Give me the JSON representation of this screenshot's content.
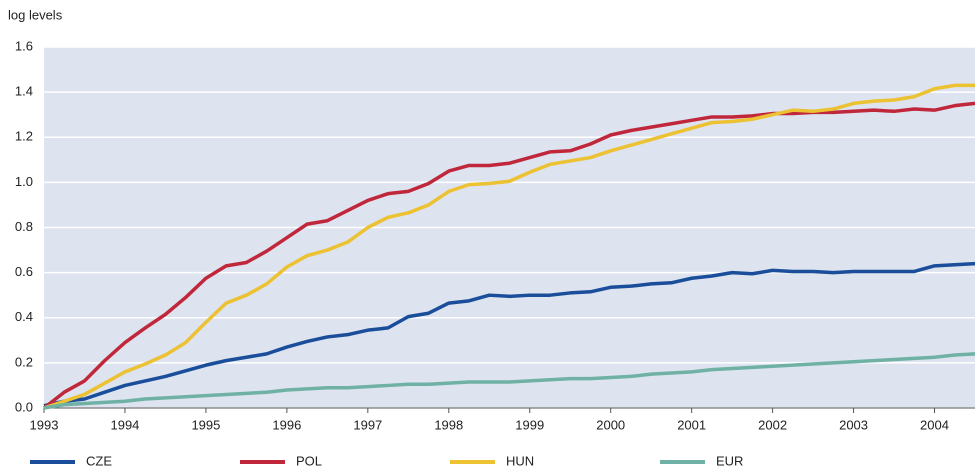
{
  "chart_data": {
    "type": "line",
    "y_label": "log levels",
    "x": [
      1993,
      1993.25,
      1993.5,
      1993.75,
      1994,
      1994.25,
      1994.5,
      1994.75,
      1995,
      1995.25,
      1995.5,
      1995.75,
      1996,
      1996.25,
      1996.5,
      1996.75,
      1997,
      1997.25,
      1997.5,
      1997.75,
      1998,
      1998.25,
      1998.5,
      1998.75,
      1999,
      1999.25,
      1999.5,
      1999.75,
      2000,
      2000.25,
      2000.5,
      2000.75,
      2001,
      2001.25,
      2001.5,
      2001.75,
      2002,
      2002.25,
      2002.5,
      2002.75,
      2003,
      2003.25,
      2003.5,
      2003.75,
      2004,
      2004.25,
      2004.5
    ],
    "series": [
      {
        "name": "CZE",
        "color": "#1a4e9a",
        "values": [
          0.01,
          0.03,
          0.04,
          0.07,
          0.1,
          0.12,
          0.14,
          0.165,
          0.19,
          0.21,
          0.225,
          0.24,
          0.27,
          0.295,
          0.315,
          0.325,
          0.345,
          0.355,
          0.405,
          0.42,
          0.465,
          0.475,
          0.5,
          0.495,
          0.5,
          0.5,
          0.51,
          0.515,
          0.535,
          0.54,
          0.55,
          0.555,
          0.575,
          0.585,
          0.6,
          0.595,
          0.61,
          0.605,
          0.605,
          0.6,
          0.605,
          0.605,
          0.605,
          0.605,
          0.63,
          0.635,
          0.64
        ]
      },
      {
        "name": "POL",
        "color": "#c0273b",
        "values": [
          0.0,
          0.07,
          0.12,
          0.21,
          0.29,
          0.355,
          0.415,
          0.49,
          0.575,
          0.63,
          0.645,
          0.695,
          0.755,
          0.815,
          0.83,
          0.875,
          0.92,
          0.95,
          0.96,
          0.995,
          1.05,
          1.075,
          1.075,
          1.085,
          1.11,
          1.135,
          1.14,
          1.17,
          1.21,
          1.23,
          1.245,
          1.26,
          1.275,
          1.29,
          1.29,
          1.295,
          1.305,
          1.305,
          1.31,
          1.31,
          1.315,
          1.32,
          1.315,
          1.325,
          1.32,
          1.34,
          1.35
        ]
      },
      {
        "name": "HUN",
        "color": "#ecc132",
        "values": [
          0.0,
          0.03,
          0.06,
          0.11,
          0.16,
          0.195,
          0.235,
          0.29,
          0.38,
          0.465,
          0.5,
          0.55,
          0.625,
          0.675,
          0.7,
          0.735,
          0.8,
          0.845,
          0.865,
          0.9,
          0.96,
          0.99,
          0.995,
          1.005,
          1.045,
          1.08,
          1.095,
          1.11,
          1.14,
          1.165,
          1.19,
          1.215,
          1.24,
          1.265,
          1.27,
          1.28,
          1.3,
          1.32,
          1.315,
          1.325,
          1.35,
          1.36,
          1.365,
          1.38,
          1.415,
          1.43,
          1.43
        ]
      },
      {
        "name": "EUR",
        "color": "#6fb2a5",
        "values": [
          0.0,
          0.015,
          0.02,
          0.025,
          0.03,
          0.04,
          0.045,
          0.05,
          0.055,
          0.06,
          0.065,
          0.07,
          0.08,
          0.085,
          0.09,
          0.09,
          0.095,
          0.1,
          0.105,
          0.105,
          0.11,
          0.115,
          0.115,
          0.115,
          0.12,
          0.125,
          0.13,
          0.13,
          0.135,
          0.14,
          0.15,
          0.155,
          0.16,
          0.17,
          0.175,
          0.18,
          0.185,
          0.19,
          0.195,
          0.2,
          0.205,
          0.21,
          0.215,
          0.22,
          0.225,
          0.235,
          0.24
        ]
      }
    ],
    "xlim": [
      1993,
      2004.5
    ],
    "xticks": [
      1993,
      1994,
      1995,
      1996,
      1997,
      1998,
      1999,
      2000,
      2001,
      2002,
      2003,
      2004
    ],
    "ylim": [
      0,
      1.6
    ],
    "yticks": [
      {
        "value": 0,
        "label": "0.0"
      },
      0.2,
      0.4,
      0.6,
      0.8,
      {
        "value": 1,
        "label": "1.0"
      },
      1.2,
      1.4,
      1.6
    ],
    "grid": true,
    "legend": "bottom"
  }
}
